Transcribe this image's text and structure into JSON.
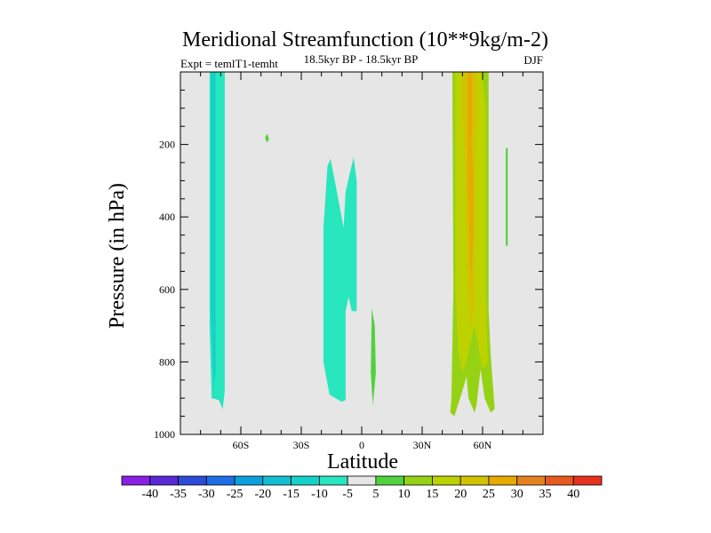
{
  "chart_data": {
    "type": "filled-contour",
    "title": "Meridional Streamfunction (10**9kg/m-2)",
    "subtitle_left": "Expt = temlT1-temht",
    "subtitle_center": "18.5kyr BP - 18.5kyr BP",
    "subtitle_right": "DJF",
    "xlabel": "Latitude",
    "ylabel": "Pressure (in hPa)",
    "xlim": [
      -90,
      90
    ],
    "ylim": [
      1000,
      0
    ],
    "y_inverted": true,
    "xticks": [
      {
        "value": -60,
        "label": "60S"
      },
      {
        "value": -30,
        "label": "30S"
      },
      {
        "value": 0,
        "label": "0"
      },
      {
        "value": 30,
        "label": "30N"
      },
      {
        "value": 60,
        "label": "60N"
      }
    ],
    "yticks": [
      {
        "value": 200,
        "label": "200"
      },
      {
        "value": 400,
        "label": "400"
      },
      {
        "value": 600,
        "label": "600"
      },
      {
        "value": 800,
        "label": "800"
      },
      {
        "value": 1000,
        "label": "1000"
      }
    ],
    "background_level_range": [
      -5,
      5
    ],
    "background_color": "#e6e6e6",
    "colorbar": {
      "levels": [
        -40,
        -35,
        -30,
        -25,
        -20,
        -15,
        -10,
        -5,
        5,
        10,
        15,
        20,
        25,
        30,
        35,
        40
      ],
      "colors": [
        "#8c1fe6",
        "#5a28d6",
        "#2d4bd6",
        "#1e6ee6",
        "#0aa0dc",
        "#14bed2",
        "#14d2c8",
        "#28e6be",
        "#e6e6e6",
        "#50d23c",
        "#96d214",
        "#bed200",
        "#d2c300",
        "#e6aa00",
        "#e6821e",
        "#e65a1e",
        "#e6321e"
      ]
    },
    "regions": [
      {
        "level": -10,
        "color": "#28e6be",
        "points": [
          [
            -75.5,
            0
          ],
          [
            -68,
            0
          ],
          [
            -68,
            880
          ],
          [
            -69,
            930
          ],
          [
            -71,
            905
          ],
          [
            -74.5,
            900
          ],
          [
            -75.5,
            700
          ]
        ]
      },
      {
        "level": -15,
        "color": "#14d2c8",
        "points": [
          [
            -75,
            0
          ],
          [
            -72.5,
            0
          ],
          [
            -72.5,
            820
          ],
          [
            -73.5,
            880
          ],
          [
            -75,
            650
          ]
        ]
      },
      {
        "level": -10,
        "color": "#28e6be",
        "points": [
          [
            -19,
            430
          ],
          [
            -17,
            260
          ],
          [
            -15.5,
            240
          ],
          [
            -12,
            340
          ],
          [
            -9,
            430
          ],
          [
            -8,
            330
          ],
          [
            -4,
            235
          ],
          [
            -2.5,
            300
          ],
          [
            -2.5,
            660
          ],
          [
            -5,
            660
          ],
          [
            -6.5,
            620
          ],
          [
            -8,
            660
          ],
          [
            -8,
            905
          ],
          [
            -10,
            910
          ],
          [
            -16,
            890
          ],
          [
            -19,
            800
          ]
        ]
      },
      {
        "level": 5,
        "color": "#50d23c",
        "points": [
          [
            5,
            650
          ],
          [
            6.5,
            700
          ],
          [
            7,
            830
          ],
          [
            5.5,
            920
          ],
          [
            4.5,
            830
          ]
        ]
      },
      {
        "level": 5,
        "color": "#50d23c",
        "points": [
          [
            -47,
            170
          ],
          [
            -46,
            185
          ],
          [
            -47,
            195
          ],
          [
            -48,
            182
          ]
        ]
      },
      {
        "level": 5,
        "color": "#50d23c",
        "points": [
          [
            71.5,
            210
          ],
          [
            72.5,
            210
          ],
          [
            72.5,
            480
          ],
          [
            71.5,
            480
          ]
        ]
      },
      {
        "level": 10,
        "color": "#96d214",
        "points": [
          [
            45,
            0
          ],
          [
            63,
            0
          ],
          [
            63,
            160
          ],
          [
            63,
            660
          ],
          [
            64,
            780
          ],
          [
            66,
            930
          ],
          [
            64,
            940
          ],
          [
            61,
            900
          ],
          [
            59,
            820
          ],
          [
            57,
            920
          ],
          [
            56,
            940
          ],
          [
            53,
            900
          ],
          [
            52,
            840
          ],
          [
            50,
            880
          ],
          [
            46,
            950
          ],
          [
            44,
            940
          ],
          [
            44.5,
            900
          ],
          [
            45.5,
            600
          ]
        ]
      },
      {
        "level": 15,
        "color": "#bed200",
        "points": [
          [
            46.5,
            0
          ],
          [
            59.5,
            0
          ],
          [
            61.5,
            100
          ],
          [
            61.5,
            600
          ],
          [
            62.5,
            800
          ],
          [
            60,
            820
          ],
          [
            56,
            700
          ],
          [
            52,
            800
          ],
          [
            50,
            830
          ],
          [
            48,
            770
          ],
          [
            46.5,
            600
          ]
        ]
      },
      {
        "level": 20,
        "color": "#d2c300",
        "points": [
          [
            50,
            0
          ],
          [
            57.5,
            0
          ],
          [
            57.5,
            120
          ],
          [
            56,
            300
          ],
          [
            56,
            650
          ],
          [
            54,
            710
          ],
          [
            52.5,
            600
          ],
          [
            51.5,
            300
          ],
          [
            50,
            120
          ]
        ]
      },
      {
        "level": 25,
        "color": "#e6aa00",
        "points": [
          [
            52.5,
            0
          ],
          [
            55,
            0
          ],
          [
            55,
            120
          ],
          [
            54.5,
            200
          ],
          [
            55.5,
            280
          ],
          [
            55.5,
            450
          ],
          [
            54,
            600
          ],
          [
            53.5,
            450
          ],
          [
            52.5,
            280
          ],
          [
            52.5,
            150
          ]
        ]
      }
    ]
  }
}
